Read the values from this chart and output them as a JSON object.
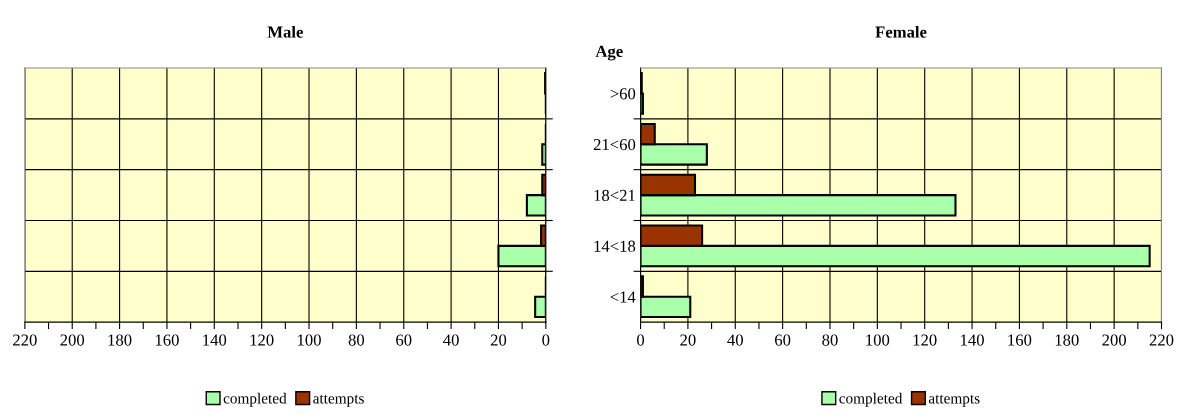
{
  "chart_data": [
    {
      "type": "bar",
      "orientation": "horizontal",
      "title": "Male",
      "categories": [
        null,
        null,
        null,
        null,
        null
      ],
      "tick_labels": "x",
      "series": [
        {
          "name": "completed",
          "color": "#aaffaa",
          "values": [
            null,
            1.5,
            8,
            20,
            4.5
          ]
        },
        {
          "name": "attempts",
          "color": "#993300",
          "values": [
            0.3,
            null,
            1.5,
            2,
            null
          ]
        }
      ],
      "xlim": [
        220,
        0
      ],
      "xticks": [
        220,
        {
          "value": 210,
          "label": null
        },
        200,
        {
          "value": 190,
          "label": null
        },
        180,
        {
          "value": 170,
          "label": null
        },
        160,
        {
          "value": 150,
          "label": null
        },
        140,
        {
          "value": 130,
          "label": null
        },
        120,
        {
          "value": 110,
          "label": null
        },
        100,
        {
          "value": 90,
          "label": null
        },
        80,
        {
          "value": 70,
          "label": null
        },
        60,
        {
          "value": 50,
          "label": null
        },
        40,
        {
          "value": 30,
          "label": null
        },
        20,
        {
          "value": 10,
          "label": null
        },
        0
      ],
      "grid": true,
      "legend": "bottom"
    },
    {
      "type": "bar",
      "orientation": "horizontal",
      "title": "Female",
      "ylabel": "Age",
      "categories": [
        ">60",
        "21<60",
        "18<21",
        "14<18",
        "<14"
      ],
      "series": [
        {
          "name": "completed",
          "color": "#aaffaa",
          "values": [
            1,
            28,
            133,
            215,
            21
          ]
        },
        {
          "name": "attempts",
          "color": "#993300",
          "values": [
            0.5,
            6,
            23,
            26,
            1
          ]
        }
      ],
      "xlim": [
        0,
        220
      ],
      "xticks": [
        0,
        {
          "value": 10,
          "label": null
        },
        20,
        {
          "value": 30,
          "label": null
        },
        40,
        {
          "value": 50,
          "label": null
        },
        60,
        {
          "value": 70,
          "label": null
        },
        80,
        {
          "value": 90,
          "label": null
        },
        100,
        {
          "value": 110,
          "label": null
        },
        120,
        {
          "value": 130,
          "label": null
        },
        140,
        {
          "value": 150,
          "label": null
        },
        160,
        {
          "value": 170,
          "label": null
        },
        180,
        {
          "value": 190,
          "label": null
        },
        200,
        {
          "value": 210,
          "label": null
        },
        220
      ],
      "grid": true,
      "legend": "bottom"
    }
  ]
}
